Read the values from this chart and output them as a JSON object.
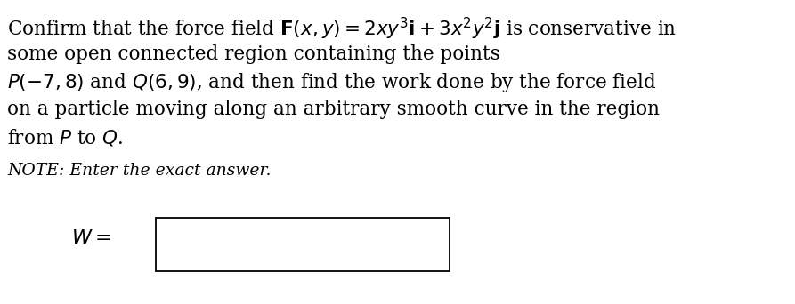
{
  "bg_color": "#ffffff",
  "text_color": "#000000",
  "fig_width": 8.93,
  "fig_height": 3.42,
  "dpi": 100,
  "lines": [
    "Confirm that the force field $\\mathbf{F}(x, y) = 2xy^3\\mathbf{i} + 3x^2y^2\\mathbf{j}$ is conservative in",
    "some open connected region containing the points",
    "$P(-7, 8)$ and $Q(6, 9)$, and then find the work done by the force field",
    "on a particle moving along an arbitrary smooth curve in the region",
    "from $P$ to $Q$."
  ],
  "note": "NOTE: Enter the exact answer.",
  "label": "$W =$",
  "main_fontsize": 15.5,
  "note_fontsize": 13.5,
  "label_fontsize": 16
}
